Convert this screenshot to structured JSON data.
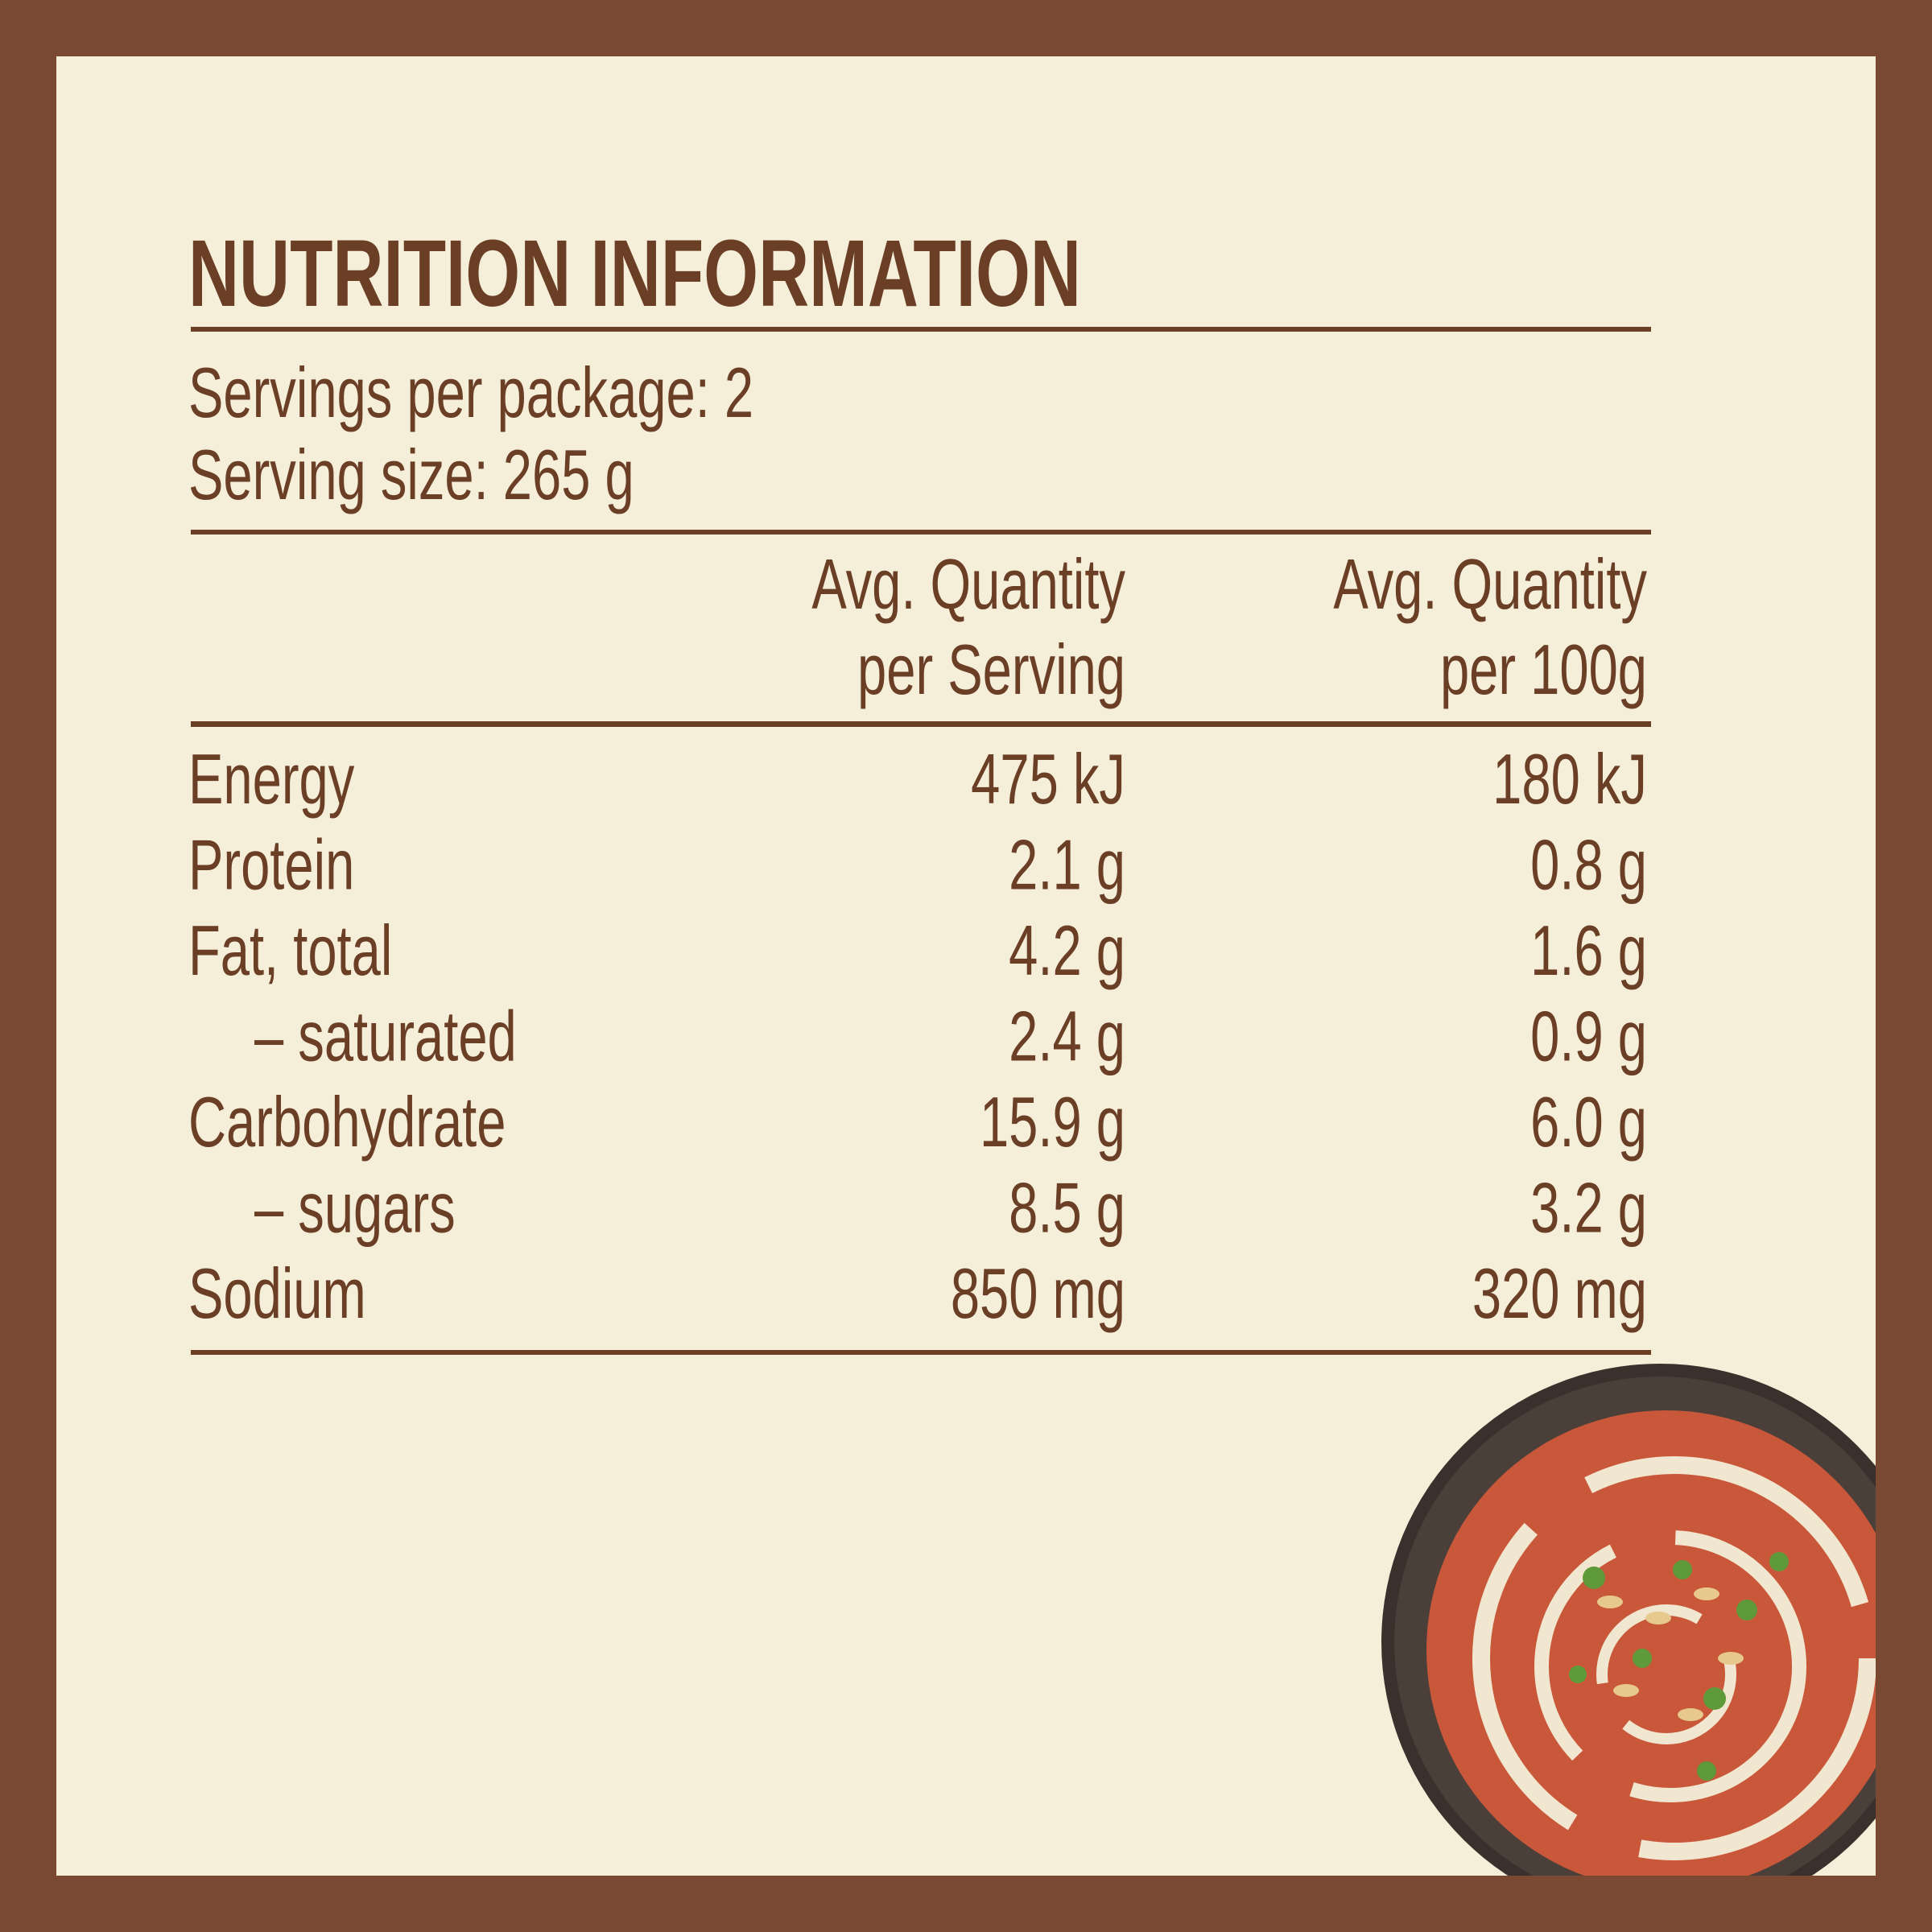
{
  "header": {
    "title": "NUTRITION INFORMATION",
    "servings_per_package": "Servings per package: 2",
    "serving_size": "Serving size: 265 g"
  },
  "table": {
    "columns": [
      [
        "Avg. Quantity",
        "per Serving"
      ],
      [
        "Avg. Quantity",
        "per 100g"
      ]
    ],
    "rows": [
      {
        "label": "Energy",
        "indent": false,
        "per_serving": "475 kJ",
        "per_100g": "180 kJ"
      },
      {
        "label": "Protein",
        "indent": false,
        "per_serving": "2.1 g",
        "per_100g": "0.8 g"
      },
      {
        "label": "Fat, total",
        "indent": false,
        "per_serving": "4.2 g",
        "per_100g": "1.6 g"
      },
      {
        "label": "– saturated",
        "indent": true,
        "per_serving": "2.4 g",
        "per_100g": "0.9 g"
      },
      {
        "label": "Carbohydrate",
        "indent": false,
        "per_serving": "15.9 g",
        "per_100g": "6.0 g"
      },
      {
        "label": "– sugars",
        "indent": true,
        "per_serving": "8.5 g",
        "per_100g": "3.2 g"
      },
      {
        "label": "Sodium",
        "indent": false,
        "per_serving": "850 mg",
        "per_100g": "320 mg"
      }
    ]
  }
}
